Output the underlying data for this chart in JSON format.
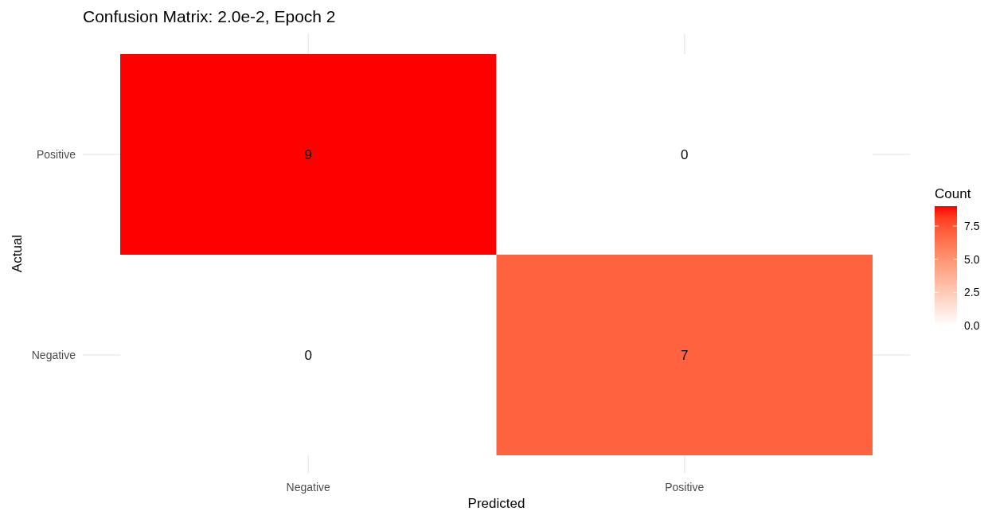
{
  "chart_data": {
    "type": "heatmap",
    "title": "Confusion Matrix: 2.0e-2, Epoch 2",
    "xlabel": "Predicted",
    "ylabel": "Actual",
    "legend_title": "Count",
    "categories": [
      "Negative",
      "Positive"
    ],
    "y_categories": [
      "Positive",
      "Negative"
    ],
    "cells": [
      [
        9,
        0
      ],
      [
        0,
        7
      ]
    ],
    "colors": [
      "#ffffff",
      "#ff0000"
    ],
    "clim": [
      0,
      9
    ],
    "cticks": [
      {
        "value": 0,
        "label": "0.0"
      },
      {
        "value": 2.5,
        "label": "2.5"
      },
      {
        "value": 5,
        "label": "5.0"
      },
      {
        "value": 7.5,
        "label": "7.5"
      }
    ],
    "data_labels": true,
    "grid": true
  }
}
